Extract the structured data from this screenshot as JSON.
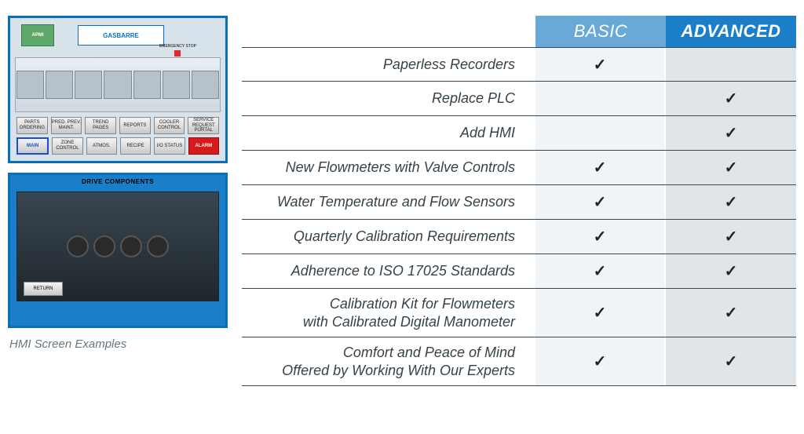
{
  "caption": "HMI Screen Examples",
  "hmi_top": {
    "logo1": "APMI",
    "logo2": "GASBARRE",
    "emergency_label": "EMERGENCY STOP",
    "buttons_row1": [
      "PARTS ORDERING",
      "PRED. PREV. MAINT.",
      "TREND PAGES",
      "REPORTS",
      "COOLER CONTROL",
      "SERVICE REQUEST PORTAL"
    ],
    "buttons_row2": [
      "MAIN",
      "ZONE CONTROL",
      "ATMOS.",
      "RECIPE",
      "I/O STATUS",
      "ALARM"
    ]
  },
  "hmi_bottom": {
    "title": "DRIVE COMPONENTS",
    "return_label": "RETURN"
  },
  "table": {
    "header_basic": "BASIC",
    "header_advanced": "ADVANCED",
    "rows": [
      {
        "label": "Paperless Recorders",
        "basic": true,
        "advanced": false
      },
      {
        "label": "Replace PLC",
        "basic": false,
        "advanced": true
      },
      {
        "label": "Add HMI",
        "basic": false,
        "advanced": true
      },
      {
        "label": "New Flowmeters with Valve Controls",
        "basic": true,
        "advanced": true
      },
      {
        "label": "Water Temperature and Flow Sensors",
        "basic": true,
        "advanced": true
      },
      {
        "label": "Quarterly Calibration Requirements",
        "basic": true,
        "advanced": true
      },
      {
        "label": "Adherence to ISO 17025 Standards",
        "basic": true,
        "advanced": true
      },
      {
        "label": "Calibration Kit for Flowmeters\nwith Calibrated Digital Manometer",
        "basic": true,
        "advanced": true
      },
      {
        "label": "Comfort and Peace of Mind\nOffered by Working With Our Experts",
        "basic": true,
        "advanced": true
      }
    ],
    "colors": {
      "header_basic_bg": "#6aa8d8",
      "header_advanced_bg": "#1a7fc8",
      "cell_basic_bg": "#f1f4f6",
      "cell_advanced_bg": "#e0e5e9",
      "row_border": "#3a4650",
      "label_color": "#35424a"
    }
  }
}
